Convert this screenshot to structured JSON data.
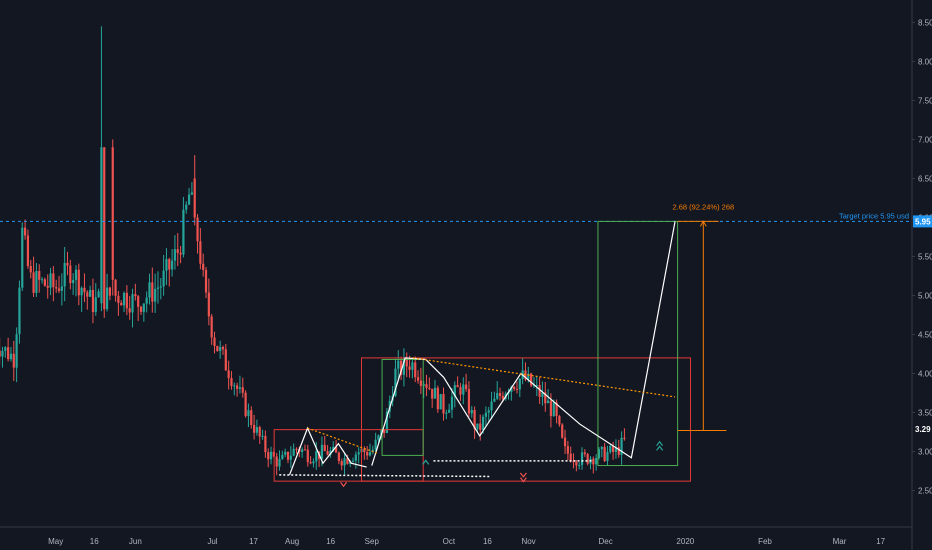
{
  "chart_data": {
    "type": "candlestick",
    "title": "",
    "xlabel": "",
    "ylabel": "",
    "ylim": [
      2.1,
      8.65
    ],
    "colors": {
      "background": "#131722",
      "up": "#26a69a",
      "down": "#ef5350",
      "axis_text": "#b2b5be",
      "target_line": "#2196f3",
      "forecast_line": "#ffffff",
      "trend_line": "#ff9800",
      "measure": "#f57c00",
      "green_box": "#4caf50",
      "red_box": "#e53935"
    },
    "y_ticks": [
      "2.50",
      "3.00",
      "3.50",
      "4.00",
      "4.50",
      "5.00",
      "5.50",
      "6.00",
      "6.50",
      "7.00",
      "7.50",
      "8.00",
      "8.50"
    ],
    "x_ticks": [
      {
        "label": "May",
        "day": 24
      },
      {
        "label": "16",
        "day": 39
      },
      {
        "label": "Jun",
        "day": 55
      },
      {
        "label": "Jul",
        "day": 85
      },
      {
        "label": "17",
        "day": 101
      },
      {
        "label": "Aug",
        "day": 116
      },
      {
        "label": "16",
        "day": 131
      },
      {
        "label": "Sep",
        "day": 147
      },
      {
        "label": "Oct",
        "day": 177
      },
      {
        "label": "16",
        "day": 192
      },
      {
        "label": "Nov",
        "day": 208
      },
      {
        "label": "Dec",
        "day": 238
      },
      {
        "label": "2020",
        "day": 269
      },
      {
        "label": "Feb",
        "day": 300
      },
      {
        "label": "Mar",
        "day": 329
      },
      {
        "label": "17",
        "day": 345
      }
    ],
    "price_labels": {
      "target": "5.95",
      "current": "3.29"
    },
    "annotations": {
      "target_text": "Target price 5.95 usd",
      "measure_text": "2.68 (92.24%) 268"
    }
  }
}
